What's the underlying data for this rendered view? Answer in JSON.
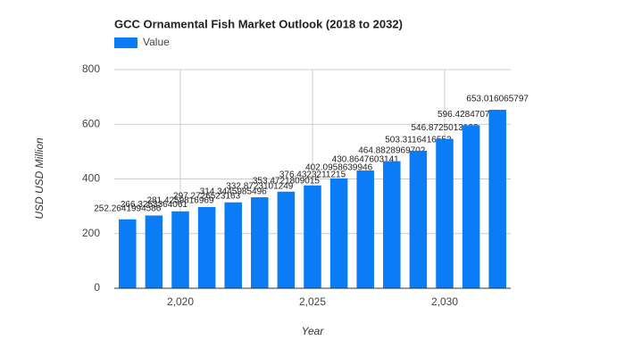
{
  "chart_data": {
    "type": "bar",
    "title": "GCC Ornamental Fish Market Outlook (2018 to 2032)",
    "x_label": "Year",
    "y_label": "USD USD Million",
    "x": [
      2018,
      2019,
      2020,
      2021,
      2022,
      2023,
      2024,
      2025,
      2026,
      2027,
      2028,
      2029,
      2030,
      2031,
      2032
    ],
    "series": [
      {
        "name": "Value",
        "color": "#0a7cf5",
        "values": [
          252.2641994586,
          266.3253364061,
          281.4259816969,
          297.2726523163,
          314.3445985496,
          332.8723101249,
          353.4721809015,
          376.4323211215,
          402.0958639946,
          430.8647603141,
          464.8828969702,
          503.3116416552,
          546.8725013123,
          596.4284707316,
          653.016065797
        ]
      }
    ],
    "xlim": [
      2017.5,
      2032.5
    ],
    "xticks": [
      {
        "value": 2020,
        "label": "2,020"
      },
      {
        "value": 2025,
        "label": "2,025"
      },
      {
        "value": 2030,
        "label": "2,030"
      }
    ],
    "ylim": [
      0,
      800
    ],
    "yticks": [
      0,
      200,
      400,
      600,
      800
    ],
    "grid": true
  }
}
